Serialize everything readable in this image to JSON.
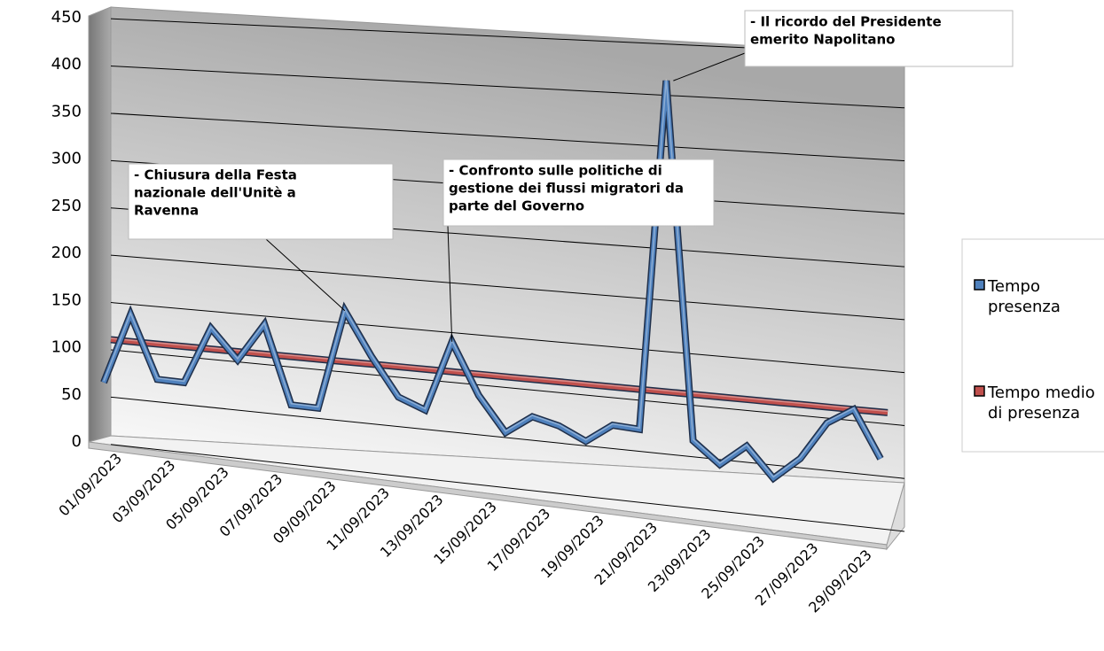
{
  "chart_data": {
    "type": "line",
    "categories": [
      "01/09/2023",
      null,
      "03/09/2023",
      null,
      "05/09/2023",
      null,
      "07/09/2023",
      null,
      "09/09/2023",
      null,
      "11/09/2023",
      null,
      "13/09/2023",
      null,
      "15/09/2023",
      null,
      "17/09/2023",
      null,
      "19/09/2023",
      null,
      "21/09/2023",
      null,
      "23/09/2023",
      null,
      "25/09/2023",
      null,
      "27/09/2023",
      null,
      "29/09/2023",
      null
    ],
    "series": [
      {
        "name": "Tempo presenza",
        "color": "#4f81bd",
        "values": [
          65,
          140,
          75,
          75,
          135,
          105,
          145,
          65,
          65,
          168,
          124,
          86,
          76,
          148,
          97,
          63,
          82,
          76,
          64,
          83,
          82,
          426,
          77,
          57,
          78,
          50,
          72,
          109,
          125,
          81
        ]
      },
      {
        "name": "Tempo medio di presenza",
        "color": "#c0504d",
        "values": [
          110,
          110,
          110,
          110,
          110,
          110,
          110,
          110,
          110,
          110,
          110,
          110,
          110,
          110,
          110,
          110,
          110,
          110,
          110,
          110,
          110,
          110,
          110,
          110,
          110,
          110,
          110,
          110,
          110,
          110
        ]
      }
    ],
    "ylim": [
      0,
      450
    ],
    "yticks": [
      0,
      50,
      100,
      150,
      200,
      250,
      300,
      350,
      400,
      450
    ],
    "grid": true,
    "legend": "right",
    "annotations": [
      {
        "lines": [
          "- Chiusura della Festa",
          "nazionale dell'Unitè a",
          "Ravenna"
        ],
        "point": 9
      },
      {
        "lines": [
          "- Confronto sulle politiche di",
          "gestione dei flussi migratori da",
          "parte del Governo"
        ],
        "point": 13
      },
      {
        "lines": [
          "- Il ricordo del Presidente",
          "emerito Napolitano"
        ],
        "point": 21
      }
    ]
  }
}
